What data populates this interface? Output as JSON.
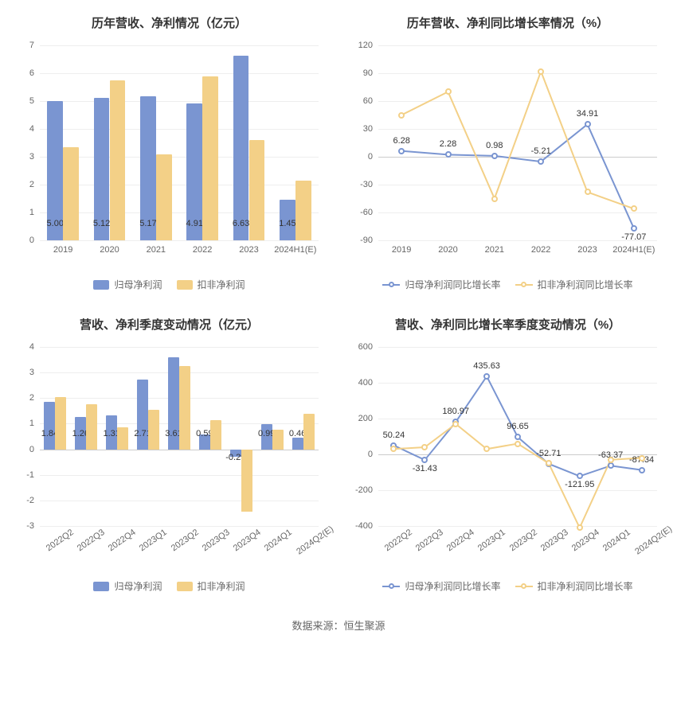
{
  "colors": {
    "series_a": "#7a95d1",
    "series_b": "#f3d087",
    "grid": "#eeeeee",
    "axis_text": "#666666",
    "text": "#333333",
    "bg": "#ffffff"
  },
  "source_line": "数据来源：恒生聚源",
  "chart1": {
    "title": "历年营收、净利情况（亿元）",
    "type": "bar",
    "categories": [
      "2019",
      "2020",
      "2021",
      "2022",
      "2023",
      "2024H1(E)"
    ],
    "series": [
      {
        "name": "归母净利润",
        "color": "#7a95d1",
        "values": [
          5.0,
          5.12,
          5.17,
          4.91,
          6.63,
          1.45
        ],
        "labels": [
          "5.00",
          "5.12",
          "5.17",
          "4.91",
          "6.63",
          "1.45"
        ]
      },
      {
        "name": "扣非净利润",
        "color": "#f3d087",
        "values": [
          3.35,
          5.75,
          3.1,
          5.9,
          3.6,
          2.15
        ],
        "labels": [
          "",
          "",
          "",
          "",
          "",
          ""
        ]
      }
    ],
    "ylim": [
      0,
      7
    ],
    "ytick_step": 1,
    "bar_width": 0.34,
    "label_fontsize": 11,
    "title_fontsize": 15,
    "axis_fontsize": 11,
    "x_rotate": false
  },
  "chart2": {
    "title": "历年营收、净利同比增长率情况（%）",
    "type": "line",
    "categories": [
      "2019",
      "2020",
      "2021",
      "2022",
      "2023",
      "2024H1(E)"
    ],
    "series": [
      {
        "name": "归母净利润同比增长率",
        "color": "#7a95d1",
        "values": [
          6.28,
          2.28,
          0.98,
          -5.21,
          34.91,
          -77.07
        ],
        "labels": [
          "6.28",
          "2.28",
          "0.98",
          "-5.21",
          "34.91",
          "-77.07"
        ],
        "label_pos": [
          "above",
          "above",
          "above",
          "above",
          "above",
          "below"
        ]
      },
      {
        "name": "扣非净利润同比增长率",
        "color": "#f3d087",
        "values": [
          45,
          70,
          -45,
          92,
          -38,
          -56
        ],
        "labels": [
          "",
          "",
          "",
          "",
          "",
          ""
        ]
      }
    ],
    "ylim": [
      -90,
      120
    ],
    "ytick_step": 30,
    "marker_size": 4,
    "line_width": 2,
    "label_fontsize": 11,
    "title_fontsize": 15,
    "axis_fontsize": 11,
    "x_rotate": false
  },
  "chart3": {
    "title": "营收、净利季度变动情况（亿元）",
    "type": "bar",
    "categories": [
      "2022Q2",
      "2022Q3",
      "2022Q4",
      "2023Q1",
      "2023Q2",
      "2023Q3",
      "2023Q4",
      "2024Q1",
      "2024Q2(E)"
    ],
    "series": [
      {
        "name": "归母净利润",
        "color": "#7a95d1",
        "values": [
          1.84,
          1.26,
          1.31,
          2.71,
          3.61,
          0.59,
          -0.29,
          0.99,
          0.46
        ],
        "labels": [
          "1.84",
          "1.26",
          "1.31",
          "2.71",
          "3.61",
          "0.59",
          "-0.29",
          "0.99",
          "0.46"
        ]
      },
      {
        "name": "扣非净利润",
        "color": "#f3d087",
        "values": [
          2.05,
          1.75,
          0.85,
          1.55,
          3.25,
          1.15,
          -2.45,
          0.75,
          1.4
        ],
        "labels": [
          "",
          "",
          "",
          "",
          "",
          "",
          "",
          "",
          ""
        ]
      }
    ],
    "ylim": [
      -3,
      4
    ],
    "ytick_step": 1,
    "bar_width": 0.36,
    "label_fontsize": 11,
    "title_fontsize": 15,
    "axis_fontsize": 11,
    "x_rotate": true
  },
  "chart4": {
    "title": "营收、净利同比增长率季度变动情况（%）",
    "type": "line",
    "categories": [
      "2022Q2",
      "2022Q3",
      "2022Q4",
      "2023Q1",
      "2023Q2",
      "2023Q3",
      "2023Q4",
      "2024Q1",
      "2024Q2(E)"
    ],
    "series": [
      {
        "name": "归母净利润同比增长率",
        "color": "#7a95d1",
        "values": [
          50.24,
          -31.43,
          180.97,
          435.63,
          96.65,
          -52.71,
          -121.95,
          -63.37,
          -87.34
        ],
        "labels": [
          "50.24",
          "-31.43",
          "180.97",
          "435.63",
          "96.65",
          "-52.71",
          "-121.95",
          "-63.37",
          "-87.34"
        ],
        "label_pos": [
          "above",
          "below",
          "above",
          "above",
          "above",
          "above",
          "below",
          "above",
          "above"
        ]
      },
      {
        "name": "扣非净利润同比增长率",
        "color": "#f3d087",
        "values": [
          30,
          40,
          170,
          30,
          60,
          -50,
          -410,
          -30,
          -20
        ],
        "labels": [
          "",
          "",
          "",
          "",
          "",
          "",
          "",
          "",
          ""
        ]
      }
    ],
    "ylim": [
      -400,
      600
    ],
    "ytick_step": 200,
    "marker_size": 4,
    "line_width": 2,
    "label_fontsize": 11,
    "title_fontsize": 15,
    "axis_fontsize": 11,
    "x_rotate": true
  }
}
